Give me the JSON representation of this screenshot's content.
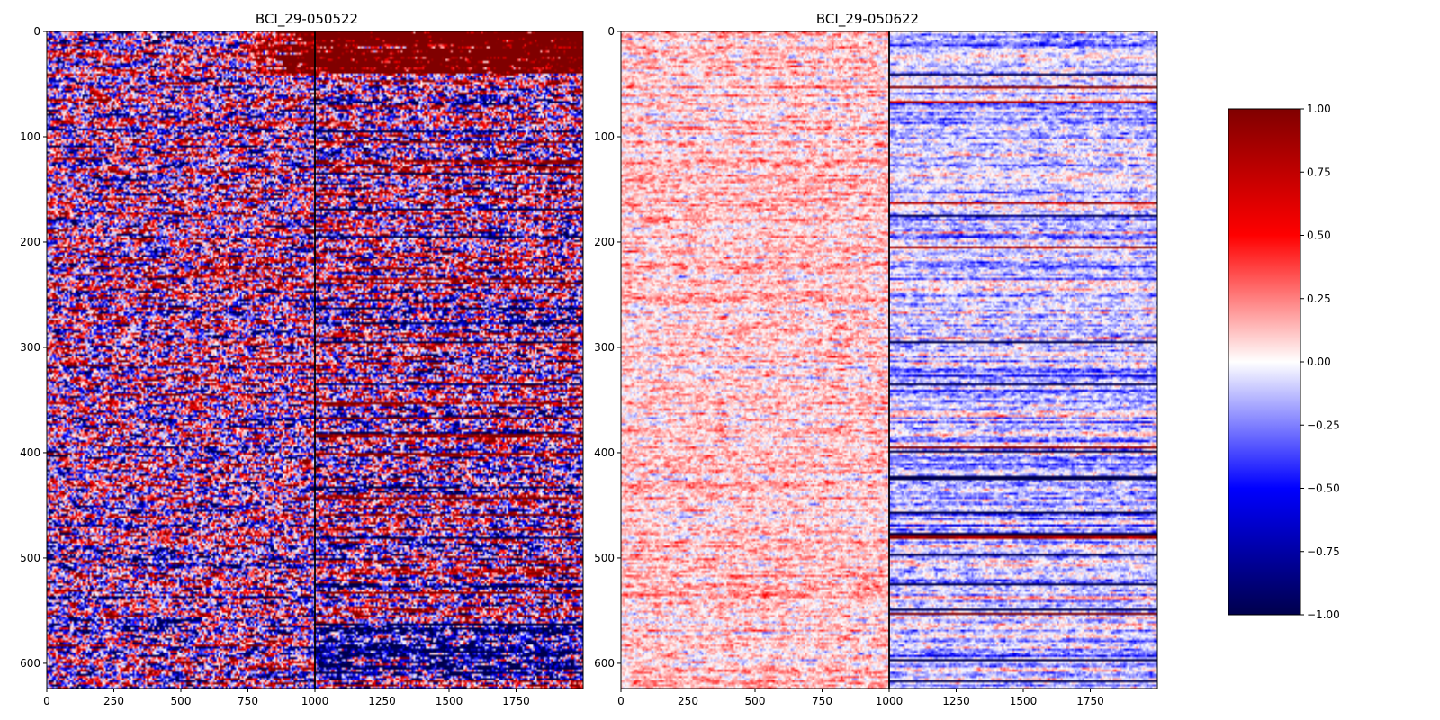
{
  "chart_data": [
    {
      "type": "heatmap",
      "title": "BCI_29-050522",
      "xlabel": "",
      "ylabel": "",
      "xlim": [
        0,
        2000
      ],
      "ylim": [
        624,
        0
      ],
      "xticks": [
        0,
        250,
        500,
        750,
        1000,
        1250,
        1500,
        1750
      ],
      "yticks": [
        0,
        100,
        200,
        300,
        400,
        500,
        600
      ],
      "colormap": "seismic",
      "vmin": -1.0,
      "vmax": 1.0,
      "marker_line_x": 1000,
      "pattern": "high contrast, rows saturated near +/-1; strong positive block in rows 0-40 after x=1000; dense alternating red/blue texture elsewhere, dark blue rows near the bottom after x=1000"
    },
    {
      "type": "heatmap",
      "title": "BCI_29-050622",
      "xlabel": "",
      "ylabel": "",
      "xlim": [
        0,
        2000
      ],
      "ylim": [
        624,
        0
      ],
      "xticks": [
        0,
        250,
        500,
        750,
        1000,
        1250,
        1500,
        1750
      ],
      "yticks": [
        0,
        100,
        200,
        300,
        400,
        500,
        600
      ],
      "colormap": "seismic",
      "vmin": -1.0,
      "vmax": 1.0,
      "marker_line_x": 1000,
      "pattern": "low contrast, mostly pale red/blue near 0; light red before x=1000, more blue after x=1000; thin saturated horizontal rows (e.g. around 145, 230, 335, 420, 465, 560)"
    }
  ],
  "colorbar": {
    "colormap": "seismic",
    "ticks": [
      1.0,
      0.75,
      0.5,
      0.25,
      0.0,
      -0.25,
      -0.5,
      -0.75,
      -1.0
    ],
    "tick_labels": [
      "1.00",
      "0.75",
      "0.50",
      "0.25",
      "0.00",
      "−0.25",
      "−0.50",
      "−0.75",
      "−1.00"
    ]
  },
  "colors": {
    "cmap_dark_blue": "#00004c",
    "cmap_blue": "#0000ff",
    "cmap_white": "#ffffff",
    "cmap_red": "#ff0000",
    "cmap_dark_red": "#800000",
    "axis": "#000000",
    "marker_line": "#000000"
  }
}
